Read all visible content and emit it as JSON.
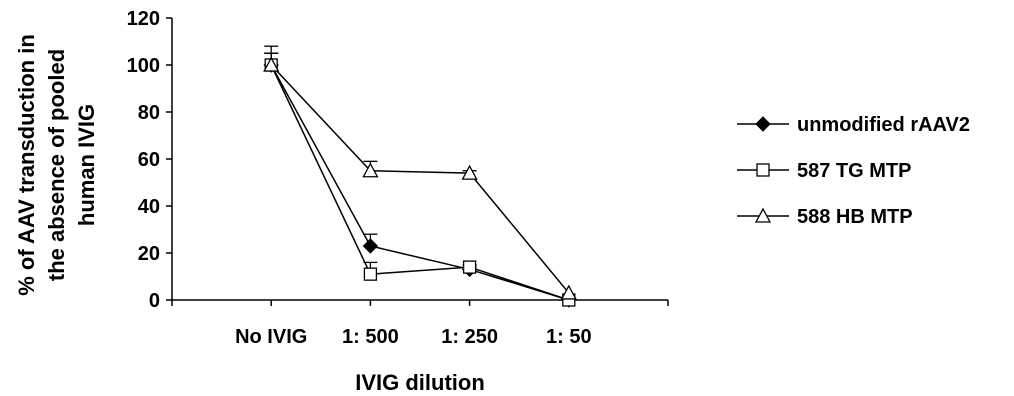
{
  "chart_data": {
    "type": "line",
    "categories": [
      "No IVIG",
      "1: 500",
      "1: 250",
      "1: 50"
    ],
    "xlabel": "IVIG dilution",
    "ylabel_lines": [
      "% of AAV transduction in",
      "the absence of pooled",
      "human IVIG"
    ],
    "ylim": [
      0,
      120
    ],
    "yticks": [
      0,
      20,
      40,
      60,
      80,
      100,
      120
    ],
    "grid": false,
    "legend_position": "right",
    "series": [
      {
        "name": "unmodified rAAV2",
        "marker": "filled-diamond",
        "color": "#000000",
        "values": [
          100,
          23,
          13,
          0
        ],
        "errors": [
          8,
          5,
          1,
          0
        ]
      },
      {
        "name": "587 TG MTP",
        "marker": "open-square",
        "color": "#000000",
        "values": [
          100,
          11,
          14,
          0
        ],
        "errors": [
          5,
          5,
          1,
          0
        ]
      },
      {
        "name": "588 HB MTP",
        "marker": "open-triangle",
        "color": "#000000",
        "values": [
          100,
          55,
          54,
          3
        ],
        "errors": [
          5,
          4,
          1,
          0
        ]
      }
    ]
  }
}
